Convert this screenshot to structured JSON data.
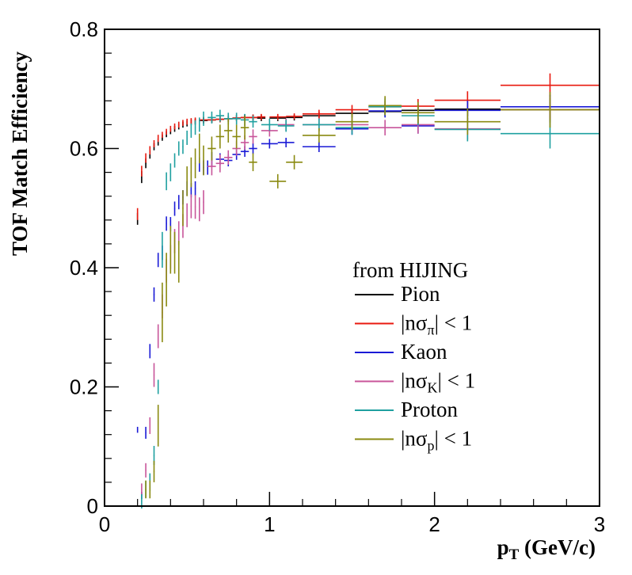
{
  "chart_data": {
    "type": "scatter",
    "title": "",
    "xlabel": "p",
    "xlabel_sub": "T",
    "xlabel_unit": " (GeV/c)",
    "ylabel": "TOF Match Efficiency",
    "xlim": [
      0,
      3
    ],
    "ylim": [
      0,
      0.8
    ],
    "x_ticks": [
      {
        "v": 0,
        "label": "0"
      },
      {
        "v": 1,
        "label": "1"
      },
      {
        "v": 2,
        "label": "2"
      },
      {
        "v": 3,
        "label": "3"
      }
    ],
    "y_ticks": [
      {
        "v": 0,
        "label": "0"
      },
      {
        "v": 0.2,
        "label": "0.2"
      },
      {
        "v": 0.4,
        "label": "0.4"
      },
      {
        "v": 0.6,
        "label": "0.6"
      },
      {
        "v": 0.8,
        "label": "0.8"
      }
    ],
    "grid": false,
    "legend_title": "from HIJING",
    "legend_position": "center-right",
    "series": [
      {
        "name": "Pion",
        "color": "#000000",
        "label_main": "Pion",
        "label_sub": "",
        "label_rest": "",
        "points": [
          [
            0.2,
            0.482,
            0.003,
            0.01
          ],
          [
            0.225,
            0.552,
            0.003,
            0.01
          ],
          [
            0.25,
            0.575,
            0.003,
            0.008
          ],
          [
            0.275,
            0.59,
            0.003,
            0.007
          ],
          [
            0.3,
            0.603,
            0.003,
            0.006
          ],
          [
            0.325,
            0.611,
            0.003,
            0.006
          ],
          [
            0.35,
            0.618,
            0.003,
            0.005
          ],
          [
            0.375,
            0.624,
            0.003,
            0.005
          ],
          [
            0.4,
            0.629,
            0.003,
            0.005
          ],
          [
            0.425,
            0.633,
            0.003,
            0.005
          ],
          [
            0.45,
            0.637,
            0.003,
            0.005
          ],
          [
            0.475,
            0.64,
            0.003,
            0.005
          ],
          [
            0.5,
            0.642,
            0.003,
            0.005
          ],
          [
            0.525,
            0.644,
            0.003,
            0.005
          ],
          [
            0.55,
            0.645,
            0.003,
            0.005
          ],
          [
            0.6,
            0.647,
            0.025,
            0.005
          ],
          [
            0.65,
            0.648,
            0.025,
            0.005
          ],
          [
            0.7,
            0.649,
            0.025,
            0.005
          ],
          [
            0.75,
            0.65,
            0.025,
            0.005
          ],
          [
            0.8,
            0.651,
            0.025,
            0.005
          ],
          [
            0.85,
            0.652,
            0.025,
            0.005
          ],
          [
            0.9,
            0.652,
            0.025,
            0.005
          ],
          [
            0.95,
            0.651,
            0.025,
            0.005
          ],
          [
            1.05,
            0.651,
            0.05,
            0.005
          ],
          [
            1.15,
            0.652,
            0.05,
            0.005
          ],
          [
            1.3,
            0.655,
            0.1,
            0.006
          ],
          [
            1.5,
            0.659,
            0.1,
            0.007
          ],
          [
            1.7,
            0.662,
            0.1,
            0.008
          ],
          [
            1.9,
            0.664,
            0.1,
            0.01
          ],
          [
            2.2,
            0.666,
            0.2,
            0.012
          ],
          [
            2.7,
            0.665,
            0.3,
            0.02
          ]
        ]
      },
      {
        "name": "|nσπ| < 1",
        "color": "#e8190f",
        "label_main": "|nσ",
        "label_sub": "π",
        "label_rest": "| < 1",
        "points": [
          [
            0.2,
            0.49,
            0.003,
            0.01
          ],
          [
            0.225,
            0.562,
            0.003,
            0.009
          ],
          [
            0.25,
            0.584,
            0.003,
            0.008
          ],
          [
            0.275,
            0.597,
            0.003,
            0.007
          ],
          [
            0.3,
            0.608,
            0.003,
            0.006
          ],
          [
            0.325,
            0.617,
            0.003,
            0.006
          ],
          [
            0.35,
            0.623,
            0.003,
            0.005
          ],
          [
            0.375,
            0.628,
            0.003,
            0.005
          ],
          [
            0.4,
            0.633,
            0.003,
            0.005
          ],
          [
            0.425,
            0.637,
            0.003,
            0.005
          ],
          [
            0.45,
            0.64,
            0.003,
            0.005
          ],
          [
            0.475,
            0.643,
            0.003,
            0.005
          ],
          [
            0.5,
            0.645,
            0.003,
            0.005
          ],
          [
            0.525,
            0.646,
            0.003,
            0.005
          ],
          [
            0.55,
            0.647,
            0.003,
            0.005
          ],
          [
            0.6,
            0.648,
            0.025,
            0.005
          ],
          [
            0.65,
            0.648,
            0.025,
            0.005
          ],
          [
            0.7,
            0.649,
            0.025,
            0.005
          ],
          [
            0.75,
            0.65,
            0.025,
            0.005
          ],
          [
            0.8,
            0.651,
            0.025,
            0.005
          ],
          [
            0.85,
            0.652,
            0.025,
            0.005
          ],
          [
            0.9,
            0.652,
            0.025,
            0.005
          ],
          [
            0.95,
            0.653,
            0.025,
            0.005
          ],
          [
            1.05,
            0.653,
            0.05,
            0.005
          ],
          [
            1.15,
            0.654,
            0.05,
            0.005
          ],
          [
            1.3,
            0.658,
            0.1,
            0.007
          ],
          [
            1.5,
            0.665,
            0.1,
            0.008
          ],
          [
            1.7,
            0.67,
            0.1,
            0.01
          ],
          [
            1.9,
            0.671,
            0.1,
            0.012
          ],
          [
            2.2,
            0.681,
            0.2,
            0.015
          ],
          [
            2.7,
            0.706,
            0.3,
            0.02
          ]
        ]
      },
      {
        "name": "Kaon",
        "color": "#1a1ad6",
        "label_main": "Kaon",
        "label_sub": "",
        "label_rest": "",
        "points": [
          [
            0.2,
            0.128,
            0.003,
            0.005
          ],
          [
            0.225,
            0.018,
            0.003,
            0.006
          ],
          [
            0.25,
            0.123,
            0.003,
            0.01
          ],
          [
            0.275,
            0.26,
            0.003,
            0.012
          ],
          [
            0.3,
            0.355,
            0.003,
            0.012
          ],
          [
            0.325,
            0.413,
            0.003,
            0.012
          ],
          [
            0.35,
            0.425,
            0.003,
            0.012
          ],
          [
            0.375,
            0.474,
            0.003,
            0.012
          ],
          [
            0.4,
            0.473,
            0.003,
            0.012
          ],
          [
            0.425,
            0.499,
            0.003,
            0.012
          ],
          [
            0.45,
            0.51,
            0.003,
            0.012
          ],
          [
            0.475,
            0.518,
            0.003,
            0.012
          ],
          [
            0.5,
            0.533,
            0.003,
            0.012
          ],
          [
            0.525,
            0.53,
            0.003,
            0.012
          ],
          [
            0.55,
            0.533,
            0.003,
            0.012
          ],
          [
            0.575,
            0.573,
            0.003,
            0.012
          ],
          [
            0.6,
            0.568,
            0.003,
            0.012
          ],
          [
            0.625,
            0.568,
            0.003,
            0.012
          ],
          [
            0.65,
            0.582,
            0.003,
            0.012
          ],
          [
            0.7,
            0.582,
            0.025,
            0.01
          ],
          [
            0.75,
            0.58,
            0.025,
            0.01
          ],
          [
            0.8,
            0.59,
            0.025,
            0.009
          ],
          [
            0.85,
            0.595,
            0.025,
            0.009
          ],
          [
            0.9,
            0.6,
            0.025,
            0.009
          ],
          [
            1.0,
            0.608,
            0.05,
            0.008
          ],
          [
            1.1,
            0.61,
            0.05,
            0.008
          ],
          [
            1.3,
            0.603,
            0.1,
            0.009
          ],
          [
            1.5,
            0.633,
            0.1,
            0.01
          ],
          [
            1.7,
            0.663,
            0.1,
            0.011
          ],
          [
            1.9,
            0.638,
            0.1,
            0.013
          ],
          [
            2.2,
            0.664,
            0.2,
            0.016
          ],
          [
            2.7,
            0.67,
            0.3,
            0.02
          ]
        ]
      },
      {
        "name": "|nσK| < 1",
        "color": "#c8559a",
        "label_main": "|nσ",
        "label_sub": "K",
        "label_rest": "| < 1",
        "points": [
          [
            0.225,
            0.028,
            0.003,
            0.01
          ],
          [
            0.25,
            0.06,
            0.003,
            0.012
          ],
          [
            0.275,
            0.135,
            0.003,
            0.014
          ],
          [
            0.3,
            0.22,
            0.003,
            0.02
          ],
          [
            0.325,
            0.285,
            0.003,
            0.02
          ],
          [
            0.35,
            0.335,
            0.003,
            0.02
          ],
          [
            0.375,
            0.395,
            0.003,
            0.02
          ],
          [
            0.4,
            0.418,
            0.003,
            0.02
          ],
          [
            0.425,
            0.445,
            0.003,
            0.02
          ],
          [
            0.45,
            0.458,
            0.003,
            0.02
          ],
          [
            0.475,
            0.47,
            0.003,
            0.02
          ],
          [
            0.5,
            0.488,
            0.003,
            0.02
          ],
          [
            0.525,
            0.503,
            0.003,
            0.02
          ],
          [
            0.55,
            0.502,
            0.003,
            0.02
          ],
          [
            0.575,
            0.498,
            0.003,
            0.02
          ],
          [
            0.6,
            0.51,
            0.003,
            0.02
          ],
          [
            0.65,
            0.57,
            0.025,
            0.015
          ],
          [
            0.7,
            0.575,
            0.025,
            0.015
          ],
          [
            0.75,
            0.585,
            0.025,
            0.012
          ],
          [
            0.8,
            0.6,
            0.025,
            0.012
          ],
          [
            0.85,
            0.61,
            0.025,
            0.012
          ],
          [
            0.9,
            0.62,
            0.025,
            0.012
          ],
          [
            1.0,
            0.63,
            0.05,
            0.01
          ],
          [
            1.1,
            0.64,
            0.05,
            0.01
          ],
          [
            1.3,
            0.64,
            0.1,
            0.011
          ],
          [
            1.5,
            0.64,
            0.1,
            0.012
          ],
          [
            1.7,
            0.635,
            0.1,
            0.013
          ],
          [
            1.9,
            0.64,
            0.1,
            0.015
          ],
          [
            2.2,
            0.633,
            0.2,
            0.018
          ],
          [
            2.7,
            0.665,
            0.3,
            0.022
          ]
        ]
      },
      {
        "name": "Proton",
        "color": "#1fa0a0",
        "label_main": "Proton",
        "label_sub": "",
        "label_rest": "",
        "points": [
          [
            0.225,
            0.008,
            0.003,
            0.012
          ],
          [
            0.25,
            0.028,
            0.003,
            0.014
          ],
          [
            0.275,
            0.04,
            0.003,
            0.015
          ],
          [
            0.3,
            0.085,
            0.003,
            0.016
          ],
          [
            0.325,
            0.2,
            0.003,
            0.012
          ],
          [
            0.35,
            0.43,
            0.003,
            0.03
          ],
          [
            0.375,
            0.545,
            0.003,
            0.015
          ],
          [
            0.4,
            0.56,
            0.003,
            0.015
          ],
          [
            0.425,
            0.58,
            0.003,
            0.012
          ],
          [
            0.45,
            0.6,
            0.003,
            0.012
          ],
          [
            0.475,
            0.603,
            0.003,
            0.012
          ],
          [
            0.5,
            0.618,
            0.003,
            0.012
          ],
          [
            0.525,
            0.63,
            0.003,
            0.012
          ],
          [
            0.55,
            0.635,
            0.003,
            0.012
          ],
          [
            0.575,
            0.64,
            0.003,
            0.012
          ],
          [
            0.6,
            0.65,
            0.003,
            0.012
          ],
          [
            0.65,
            0.652,
            0.025,
            0.01
          ],
          [
            0.7,
            0.655,
            0.025,
            0.01
          ],
          [
            0.75,
            0.65,
            0.025,
            0.01
          ],
          [
            0.8,
            0.65,
            0.025,
            0.01
          ],
          [
            0.85,
            0.648,
            0.025,
            0.01
          ],
          [
            0.9,
            0.645,
            0.025,
            0.01
          ],
          [
            1.0,
            0.64,
            0.05,
            0.01
          ],
          [
            1.1,
            0.638,
            0.05,
            0.01
          ],
          [
            1.3,
            0.64,
            0.1,
            0.01
          ],
          [
            1.5,
            0.635,
            0.1,
            0.012
          ],
          [
            1.7,
            0.67,
            0.1,
            0.014
          ],
          [
            1.9,
            0.655,
            0.1,
            0.016
          ],
          [
            2.2,
            0.632,
            0.2,
            0.02
          ],
          [
            2.7,
            0.625,
            0.3,
            0.025
          ]
        ]
      },
      {
        "name": "|nσp| < 1",
        "color": "#8a8a10",
        "label_main": "|nσ",
        "label_sub": "p",
        "label_rest": "| < 1",
        "points": [
          [
            0.25,
            0.028,
            0.003,
            0.015
          ],
          [
            0.275,
            0.028,
            0.003,
            0.015
          ],
          [
            0.3,
            0.058,
            0.003,
            0.018
          ],
          [
            0.325,
            0.135,
            0.003,
            0.035
          ],
          [
            0.35,
            0.325,
            0.003,
            0.05
          ],
          [
            0.375,
            0.38,
            0.003,
            0.045
          ],
          [
            0.4,
            0.43,
            0.003,
            0.04
          ],
          [
            0.425,
            0.425,
            0.003,
            0.035
          ],
          [
            0.45,
            0.41,
            0.003,
            0.035
          ],
          [
            0.475,
            0.5,
            0.003,
            0.03
          ],
          [
            0.5,
            0.545,
            0.003,
            0.025
          ],
          [
            0.525,
            0.56,
            0.003,
            0.025
          ],
          [
            0.55,
            0.575,
            0.003,
            0.025
          ],
          [
            0.575,
            0.6,
            0.003,
            0.025
          ],
          [
            0.6,
            0.58,
            0.003,
            0.025
          ],
          [
            0.65,
            0.6,
            0.025,
            0.02
          ],
          [
            0.7,
            0.62,
            0.025,
            0.02
          ],
          [
            0.75,
            0.63,
            0.025,
            0.02
          ],
          [
            0.8,
            0.62,
            0.025,
            0.02
          ],
          [
            0.85,
            0.635,
            0.025,
            0.02
          ],
          [
            0.9,
            0.577,
            0.025,
            0.015
          ],
          [
            1.05,
            0.545,
            0.05,
            0.012
          ],
          [
            1.15,
            0.577,
            0.05,
            0.012
          ],
          [
            1.3,
            0.622,
            0.1,
            0.012
          ],
          [
            1.5,
            0.645,
            0.1,
            0.014
          ],
          [
            1.7,
            0.672,
            0.1,
            0.016
          ],
          [
            1.9,
            0.66,
            0.1,
            0.018
          ],
          [
            2.2,
            0.645,
            0.2,
            0.022
          ],
          [
            2.7,
            0.665,
            0.3,
            0.03
          ]
        ]
      }
    ]
  }
}
